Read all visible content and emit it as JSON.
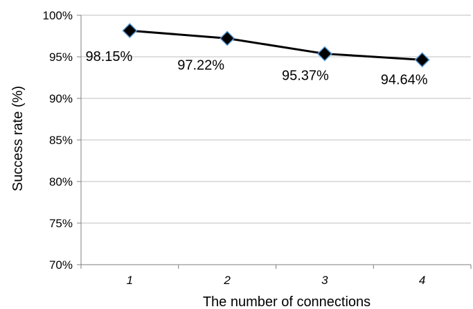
{
  "chart_data": {
    "type": "line",
    "categories": [
      "1",
      "2",
      "3",
      "4"
    ],
    "series": [
      {
        "values": [
          98.15,
          97.22,
          95.37,
          94.64
        ],
        "data_labels": [
          "98.15%",
          "97.22%",
          "95.37%",
          "94.64%"
        ],
        "color": "#000000",
        "marker": "diamond",
        "marker_fill": "#000000",
        "marker_edge": "#5b9bd5"
      }
    ],
    "y_ticks": [
      70,
      75,
      80,
      85,
      90,
      95,
      100
    ],
    "y_tick_labels": [
      "70%",
      "75%",
      "80%",
      "85%",
      "90%",
      "95%",
      "100%"
    ],
    "ylim": [
      70,
      100
    ],
    "xlabel": "The number of connections",
    "ylabel": "Success rate (%)",
    "grid": true,
    "legend": false,
    "grid_color": "#bfbfbf"
  }
}
